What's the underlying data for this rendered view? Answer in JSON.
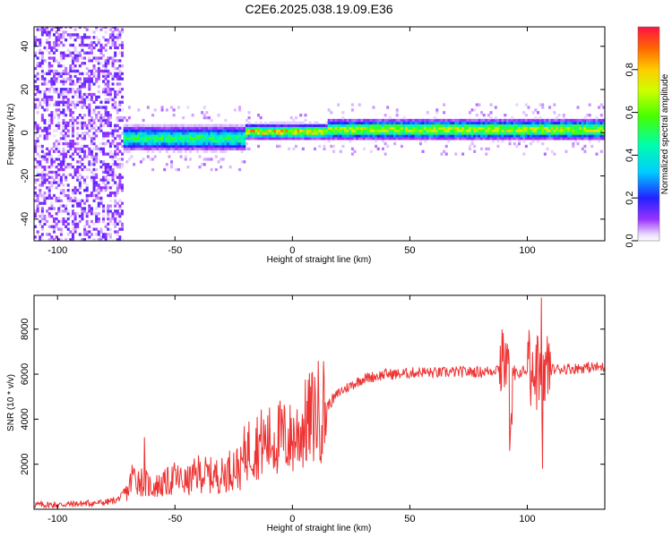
{
  "chart_data": [
    {
      "type": "heatmap",
      "title": "C2E6.2025.038.19.09.E36",
      "xlabel": "Height of straight line (km)",
      "ylabel": "Frequency (Hz)",
      "xlim": [
        -110,
        133
      ],
      "ylim": [
        -50,
        49
      ],
      "xticks": [
        "-100",
        "-50",
        "0",
        "50",
        "100"
      ],
      "yticks": [
        "-40",
        "-20",
        "0",
        "20",
        "40"
      ],
      "colorbar_label": "Normalized spectral amplitude",
      "colorbar_ticks": [
        "0.0",
        "0.2",
        "0.4",
        "0.6",
        "0.8"
      ],
      "colorbar_range": [
        0,
        1
      ],
      "description_of_field": [
        {
          "x_from": -110,
          "x_to": -72,
          "frequency_range": [
            -50,
            49
          ],
          "amplitude": 0.05,
          "note": "broadband noise"
        },
        {
          "x_from": -72,
          "x_to": -20,
          "center_hz": -3,
          "halfwidth_hz": 5,
          "peak_amplitude": 0.6
        },
        {
          "x_from": -20,
          "x_to": 15,
          "center_hz": 0,
          "halfwidth_hz": 3,
          "peak_amplitude": 0.95
        },
        {
          "x_from": 15,
          "x_to": 133,
          "center_hz": 1,
          "halfwidth_hz": 4,
          "peak_amplitude": 0.85
        }
      ]
    },
    {
      "type": "line",
      "xlabel": "Height of straight line (km)",
      "ylabel": "SNR (10 * v/v)",
      "xlim": [
        -110,
        133
      ],
      "ylim": [
        0,
        9500
      ],
      "xticks": [
        "-100",
        "-50",
        "0",
        "50",
        "100"
      ],
      "yticks": [
        "2000",
        "4000",
        "6000",
        "8000"
      ],
      "line_color": "#ee3333",
      "series": [
        {
          "x": [
            -110,
            -100,
            -90,
            -80,
            -75,
            -70,
            -68,
            -65,
            -60,
            -55,
            -50,
            -45,
            -40,
            -35,
            -30,
            -25,
            -22,
            -20,
            -15,
            -10,
            -5,
            0,
            5,
            10,
            15,
            20,
            25,
            30,
            35,
            40,
            45,
            50,
            55,
            60,
            70,
            80,
            85,
            88,
            90,
            92,
            93,
            95,
            100,
            103,
            105,
            106,
            107,
            110,
            115,
            120,
            125,
            133
          ],
          "y": [
            200,
            200,
            250,
            300,
            400,
            800,
            1500,
            1300,
            1000,
            1100,
            1400,
            1200,
            1600,
            1500,
            1500,
            1900,
            1800,
            2600,
            2900,
            3000,
            3200,
            3100,
            3700,
            4300,
            4600,
            5200,
            5500,
            5800,
            5900,
            6000,
            6000,
            6050,
            6100,
            6050,
            6100,
            6100,
            6150,
            6300,
            6600,
            6000,
            4300,
            6000,
            6200,
            6400,
            6000,
            5000,
            6200,
            6200,
            6250,
            6250,
            6300,
            6300
          ]
        }
      ]
    }
  ]
}
